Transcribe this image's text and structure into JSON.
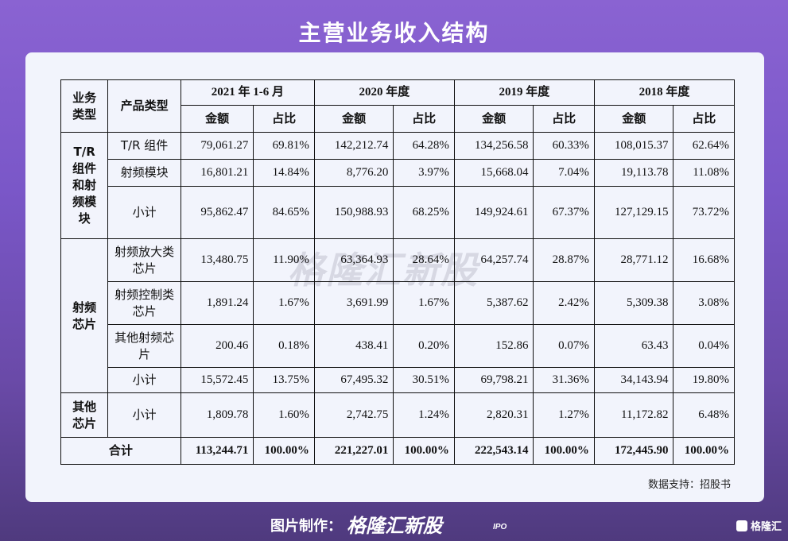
{
  "title": "主营业务收入结构",
  "headers": {
    "business_type": "业务类型",
    "product_type": "产品类型",
    "periods": [
      "2021 年 1-6 月",
      "2020 年度",
      "2019 年度",
      "2018 年度"
    ],
    "amount": "金额",
    "ratio": "占比"
  },
  "categories": [
    {
      "name": "T/R组件和射频模块"
    },
    {
      "name": "射频芯片"
    },
    {
      "name": "其他芯片"
    }
  ],
  "rows": [
    {
      "product": "T/R 组件",
      "values": [
        "79,061.27",
        "69.81%",
        "142,212.74",
        "64.28%",
        "134,256.58",
        "60.33%",
        "108,015.37",
        "62.64%"
      ]
    },
    {
      "product": "射频模块",
      "values": [
        "16,801.21",
        "14.84%",
        "8,776.20",
        "3.97%",
        "15,668.04",
        "7.04%",
        "19,113.78",
        "11.08%"
      ]
    },
    {
      "product": "小计",
      "values": [
        "95,862.47",
        "84.65%",
        "150,988.93",
        "68.25%",
        "149,924.61",
        "67.37%",
        "127,129.15",
        "73.72%"
      ]
    },
    {
      "product": "射频放大类芯片",
      "values": [
        "13,480.75",
        "11.90%",
        "63,364.93",
        "28.64%",
        "64,257.74",
        "28.87%",
        "28,771.12",
        "16.68%"
      ]
    },
    {
      "product": "射频控制类芯片",
      "values": [
        "1,891.24",
        "1.67%",
        "3,691.99",
        "1.67%",
        "5,387.62",
        "2.42%",
        "5,309.38",
        "3.08%"
      ]
    },
    {
      "product": "其他射频芯片",
      "values": [
        "200.46",
        "0.18%",
        "438.41",
        "0.20%",
        "152.86",
        "0.07%",
        "63.43",
        "0.04%"
      ]
    },
    {
      "product": "小计",
      "values": [
        "15,572.45",
        "13.75%",
        "67,495.32",
        "30.51%",
        "69,798.21",
        "31.36%",
        "34,143.94",
        "19.80%"
      ]
    },
    {
      "product": "小计",
      "values": [
        "1,809.78",
        "1.60%",
        "2,742.75",
        "1.24%",
        "2,820.31",
        "1.27%",
        "11,172.82",
        "6.48%"
      ]
    }
  ],
  "total": {
    "label": "合计",
    "values": [
      "113,244.71",
      "100.00%",
      "221,227.01",
      "100.00%",
      "222,543.14",
      "100.00%",
      "172,445.90",
      "100.00%"
    ]
  },
  "watermark": "格隆汇新股",
  "source": "数据支持：招股书",
  "footer": {
    "credit": "图片制作：",
    "brand": "格隆汇新股",
    "brand_sub": "IPO",
    "corner": "格隆汇"
  }
}
